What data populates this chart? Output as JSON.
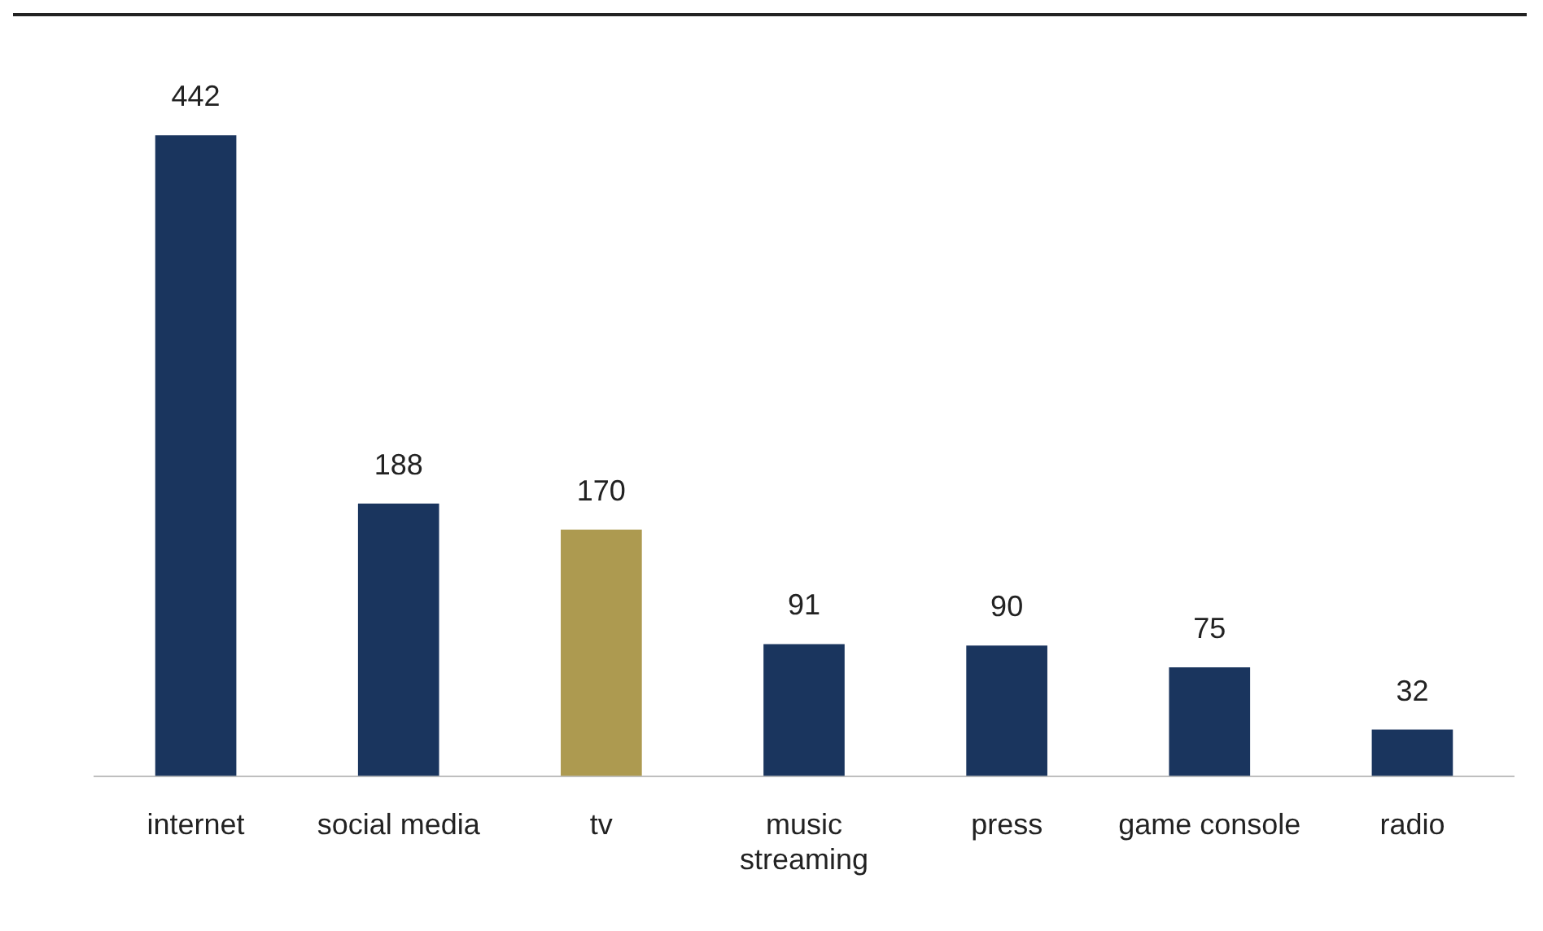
{
  "chart_data": {
    "type": "bar",
    "categories": [
      "internet",
      "social media",
      "tv",
      "music streaming",
      "press",
      "game console",
      "radio"
    ],
    "values": [
      442,
      188,
      170,
      91,
      90,
      75,
      32
    ],
    "colors": [
      "#1a355e",
      "#1a355e",
      "#ad9a50",
      "#1a355e",
      "#1a355e",
      "#1a355e",
      "#1a355e"
    ],
    "data_labels": true,
    "grid": false,
    "legend": false
  }
}
